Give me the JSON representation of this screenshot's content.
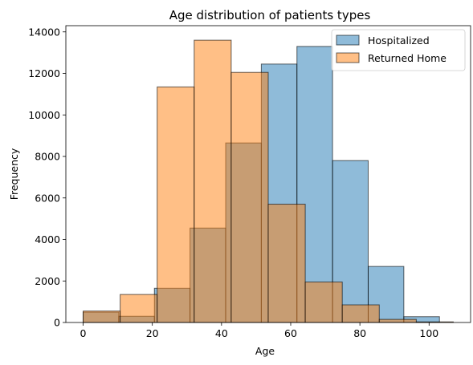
{
  "chart_data": {
    "type": "bar",
    "subtype": "overlapping-histogram",
    "title": "Age distribution of patients types",
    "xlabel": "Age",
    "ylabel": "Frequency",
    "xlim": [
      -5,
      112
    ],
    "ylim": [
      0,
      14300
    ],
    "xticks": [
      0,
      20,
      40,
      60,
      80,
      100
    ],
    "yticks": [
      0,
      2000,
      4000,
      6000,
      8000,
      10000,
      12000,
      14000
    ],
    "grid": false,
    "legend_position": "top-right",
    "series": [
      {
        "name": "Hospitalized",
        "color": "#1f77b4",
        "alpha": 0.5,
        "bins": [
          0,
          10.3,
          20.6,
          30.9,
          41.2,
          51.5,
          61.8,
          72.1,
          82.4,
          92.7,
          103
        ],
        "values": [
          500,
          300,
          1650,
          4550,
          8650,
          12450,
          13300,
          7800,
          2700,
          280
        ]
      },
      {
        "name": "Returned Home",
        "color": "#ff7f0e",
        "alpha": 0.5,
        "bins": [
          0,
          10.7,
          21.4,
          32.1,
          42.8,
          53.5,
          64.2,
          74.9,
          85.6,
          96.3,
          107
        ],
        "values": [
          550,
          1350,
          11350,
          13600,
          12050,
          5700,
          1950,
          850,
          150,
          30
        ]
      }
    ]
  }
}
